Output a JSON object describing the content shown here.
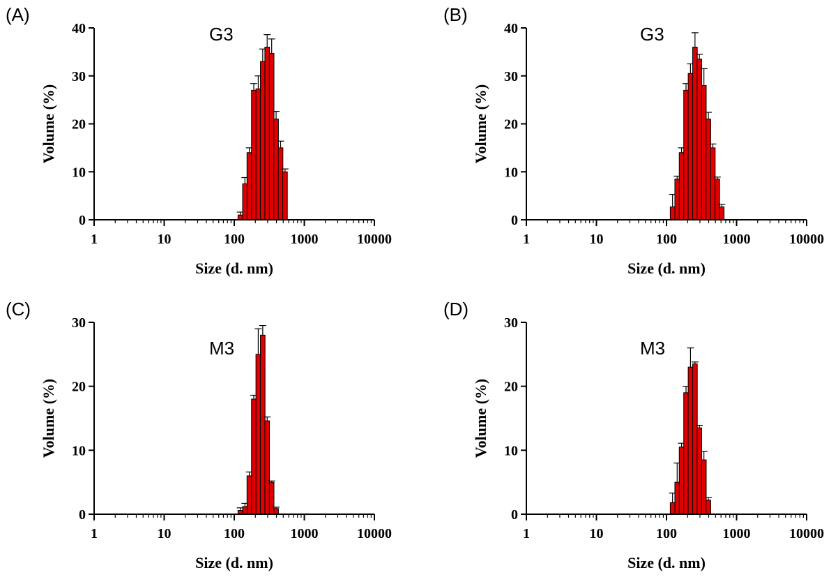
{
  "chart_data": [
    {
      "panel": "(A)",
      "sample": "G3",
      "type": "bar",
      "xlabel": "Size (d. nm)",
      "ylabel": "Volume (%)",
      "xscale": "log",
      "xlim": [
        1,
        10000
      ],
      "ylim": [
        0,
        40
      ],
      "xticks": [
        "1",
        "10",
        "100",
        "1000",
        "10000"
      ],
      "yticks": [
        "0",
        "10",
        "20",
        "30",
        "40"
      ],
      "x": [
        122,
        142,
        164,
        190,
        220,
        255,
        295,
        342,
        396,
        459,
        531
      ],
      "values": [
        1,
        7.5,
        14,
        27,
        27.3,
        33,
        36,
        34.7,
        21,
        15,
        10
      ],
      "errors": [
        0.6,
        1.3,
        1,
        1.4,
        2.7,
        2.6,
        2.6,
        3,
        1.6,
        1.4,
        0.6
      ]
    },
    {
      "panel": "(B)",
      "sample": "G3",
      "type": "bar",
      "xlabel": "Size (d. nm)",
      "ylabel": "Volume (%)",
      "xscale": "log",
      "xlim": [
        1,
        10000
      ],
      "ylim": [
        0,
        40
      ],
      "xticks": [
        "1",
        "10",
        "100",
        "1000",
        "10000"
      ],
      "yticks": [
        "0",
        "10",
        "20",
        "30",
        "40"
      ],
      "x": [
        122,
        142,
        164,
        190,
        220,
        255,
        295,
        342,
        396,
        459,
        531,
        615
      ],
      "values": [
        2.7,
        8.5,
        14,
        27,
        30.5,
        36,
        33.5,
        28,
        21,
        15,
        8.5,
        2.7
      ],
      "errors": [
        2.6,
        0.6,
        1,
        1.4,
        2,
        3,
        1,
        3.5,
        1.4,
        0.8,
        0.4,
        0.5
      ]
    },
    {
      "panel": "(C)",
      "sample": "M3",
      "type": "bar",
      "xlabel": "Size (d. nm)",
      "ylabel": "Volume (%)",
      "xscale": "log",
      "xlim": [
        1,
        10000
      ],
      "ylim": [
        0,
        30
      ],
      "xticks": [
        "1",
        "10",
        "100",
        "1000",
        "10000"
      ],
      "yticks": [
        "0",
        "10",
        "20",
        "30"
      ],
      "x": [
        122,
        142,
        164,
        190,
        220,
        255,
        295,
        342,
        396
      ],
      "values": [
        0.6,
        1.2,
        6,
        18,
        25,
        28,
        14.6,
        5,
        0.9
      ],
      "errors": [
        0.4,
        0.5,
        0.6,
        0.6,
        4,
        1.5,
        0.6,
        0.2,
        0.2
      ]
    },
    {
      "panel": "(D)",
      "sample": "M3",
      "type": "bar",
      "xlabel": "Size (d. nm)",
      "ylabel": "Volume (%)",
      "xscale": "log",
      "xlim": [
        1,
        10000
      ],
      "ylim": [
        0,
        30
      ],
      "xticks": [
        "1",
        "10",
        "100",
        "1000",
        "10000"
      ],
      "yticks": [
        "0",
        "10",
        "20",
        "30"
      ],
      "x": [
        122,
        142,
        164,
        190,
        220,
        255,
        295,
        342,
        396
      ],
      "values": [
        1.8,
        5,
        10.5,
        19,
        23,
        23.5,
        13.5,
        8.5,
        2.2
      ],
      "errors": [
        1.5,
        3,
        0.6,
        1,
        3,
        0.3,
        0.4,
        1.3,
        0.4
      ]
    }
  ]
}
